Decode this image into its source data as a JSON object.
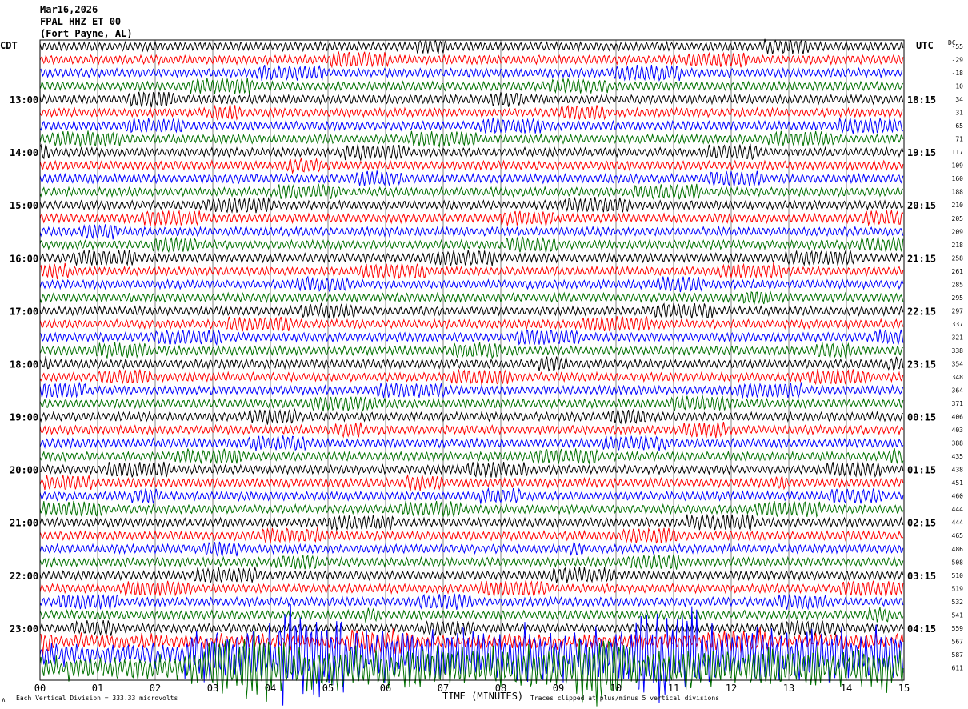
{
  "header": {
    "date": "Mar16,2026",
    "station": "FPAL HHZ ET 00",
    "location": "(Fort Payne, AL)"
  },
  "left_axis_label": "CDT",
  "right_axis_label": "UTC",
  "dc_label": "DC",
  "footer": {
    "scale_text": "Each Vertical Division =  333.33 microvolts",
    "xlabel": "TIME (MINUTES)",
    "clip_text": "Traces clipped at plus/minus 5 vertical divisions"
  },
  "chart_data": {
    "type": "line",
    "subtype": "helicorder",
    "xlabel": "TIME (MINUTES)",
    "xlim": [
      0,
      15
    ],
    "x_ticks": [
      "00",
      "01",
      "02",
      "03",
      "04",
      "05",
      "06",
      "07",
      "08",
      "09",
      "10",
      "11",
      "12",
      "13",
      "14",
      "15"
    ],
    "rows_per_hour": 4,
    "row_count": 48,
    "trace_colors": [
      "#000000",
      "#ff0000",
      "#0000ff",
      "#007000"
    ],
    "left_time_labels": [
      {
        "row": 4,
        "label": "13:00"
      },
      {
        "row": 8,
        "label": "14:00"
      },
      {
        "row": 12,
        "label": "15:00"
      },
      {
        "row": 16,
        "label": "16:00"
      },
      {
        "row": 20,
        "label": "17:00"
      },
      {
        "row": 24,
        "label": "18:00"
      },
      {
        "row": 28,
        "label": "19:00"
      },
      {
        "row": 32,
        "label": "20:00"
      },
      {
        "row": 36,
        "label": "21:00"
      },
      {
        "row": 40,
        "label": "22:00"
      },
      {
        "row": 44,
        "label": "23:00"
      }
    ],
    "right_time_labels": [
      {
        "row": 4,
        "label": "18:15"
      },
      {
        "row": 8,
        "label": "19:15"
      },
      {
        "row": 12,
        "label": "20:15"
      },
      {
        "row": 16,
        "label": "21:15"
      },
      {
        "row": 20,
        "label": "22:15"
      },
      {
        "row": 24,
        "label": "23:15"
      },
      {
        "row": 28,
        "label": "00:15"
      },
      {
        "row": 32,
        "label": "01:15"
      },
      {
        "row": 36,
        "label": "02:15"
      },
      {
        "row": 40,
        "label": "03:15"
      },
      {
        "row": 44,
        "label": "04:15"
      }
    ],
    "dc_offsets": [
      "-55",
      "-29",
      "-18",
      "10",
      "34",
      "31",
      "65",
      "71",
      "117",
      "109",
      "160",
      "188",
      "210",
      "205",
      "209",
      "218",
      "258",
      "261",
      "285",
      "295",
      "297",
      "337",
      "321",
      "338",
      "354",
      "348",
      "364",
      "371",
      "406",
      "403",
      "388",
      "435",
      "438",
      "451",
      "460",
      "444",
      "444",
      "465",
      "486",
      "508",
      "510",
      "519",
      "532",
      "541",
      "559",
      "567",
      "587",
      "611"
    ],
    "scale_microvolts_per_division": 333.33,
    "clip_divisions": 5
  }
}
